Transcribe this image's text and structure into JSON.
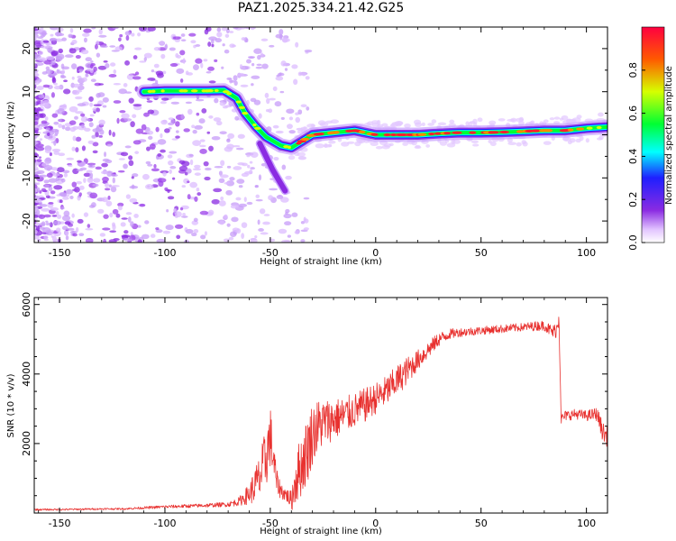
{
  "title": "PAZ1.2025.334.21.42.G25",
  "colors": {
    "snr_line": "#e8312f",
    "colorbar": [
      "#ffffff",
      "#e2c4ff",
      "#8a2be2",
      "#1f1fff",
      "#00ffff",
      "#00ff33",
      "#d6ff00",
      "#ff5a00",
      "#ff0040"
    ]
  },
  "chart_data": [
    {
      "type": "heatmap",
      "name": "spectrogram",
      "xlabel": "Height of straight line (km)",
      "ylabel": "Frequency (Hz)",
      "xlim": [
        -162,
        110
      ],
      "ylim": [
        -25,
        25
      ],
      "xticks": [
        -150,
        -100,
        -50,
        0,
        50,
        100
      ],
      "yticks": [
        -20,
        -10,
        0,
        10,
        20
      ],
      "colorbar": {
        "label": "Normalized spectral amplitude",
        "range": [
          0.0,
          1.0
        ],
        "ticks": [
          "0.0",
          "0.2",
          "0.4",
          "0.6",
          "0.8"
        ]
      },
      "ridge": [
        {
          "x": -110,
          "freq": 10.0
        },
        {
          "x": -100,
          "freq": 10.2
        },
        {
          "x": -90,
          "freq": 10.2
        },
        {
          "x": -80,
          "freq": 10.2
        },
        {
          "x": -72,
          "freq": 10.3
        },
        {
          "x": -66,
          "freq": 8.5
        },
        {
          "x": -62,
          "freq": 5.0
        },
        {
          "x": -57,
          "freq": 2.0
        },
        {
          "x": -52,
          "freq": -0.5
        },
        {
          "x": -45,
          "freq": -2.5
        },
        {
          "x": -40,
          "freq": -3.0
        },
        {
          "x": -35,
          "freq": -1.5
        },
        {
          "x": -30,
          "freq": 0.0
        },
        {
          "x": -20,
          "freq": 0.5
        },
        {
          "x": -10,
          "freq": 1.0
        },
        {
          "x": 0,
          "freq": 0.0
        },
        {
          "x": 10,
          "freq": 0.0
        },
        {
          "x": 20,
          "freq": 0.0
        },
        {
          "x": 30,
          "freq": 0.3
        },
        {
          "x": 40,
          "freq": 0.5
        },
        {
          "x": 50,
          "freq": 0.5
        },
        {
          "x": 60,
          "freq": 0.6
        },
        {
          "x": 70,
          "freq": 0.8
        },
        {
          "x": 80,
          "freq": 1.0
        },
        {
          "x": 90,
          "freq": 1.0
        },
        {
          "x": 100,
          "freq": 1.5
        },
        {
          "x": 110,
          "freq": 1.8
        }
      ],
      "branch": [
        {
          "x": -55,
          "freq": -2.0
        },
        {
          "x": -52,
          "freq": -5.0
        },
        {
          "x": -49,
          "freq": -8.0
        },
        {
          "x": -46,
          "freq": -10.5
        },
        {
          "x": -43,
          "freq": -13.0
        }
      ]
    },
    {
      "type": "line",
      "name": "snr",
      "xlabel": "Height of straight line (km)",
      "ylabel": "SNR (10 * v/v)",
      "xlim": [
        -162,
        110
      ],
      "ylim": [
        0,
        6200
      ],
      "xticks": [
        -150,
        -100,
        -50,
        0,
        50,
        100
      ],
      "yticks": [
        2000,
        4000,
        6000
      ],
      "series": [
        {
          "name": "SNR",
          "x": [
            -162,
            -150,
            -140,
            -130,
            -120,
            -110,
            -100,
            -90,
            -80,
            -70,
            -65,
            -60,
            -55,
            -52,
            -50,
            -47,
            -45,
            -42,
            -40,
            -38,
            -35,
            -32,
            -30,
            -27,
            -25,
            -20,
            -15,
            -10,
            -5,
            0,
            5,
            10,
            15,
            20,
            25,
            30,
            35,
            40,
            50,
            60,
            70,
            80,
            84,
            86,
            87,
            88,
            90,
            95,
            100,
            105,
            108,
            110
          ],
          "values": [
            100,
            100,
            110,
            120,
            120,
            150,
            180,
            200,
            220,
            250,
            330,
            550,
            1000,
            1600,
            2200,
            900,
            650,
            500,
            350,
            1000,
            1400,
            1900,
            2300,
            2500,
            2600,
            2700,
            2800,
            2950,
            3100,
            3300,
            3500,
            3800,
            4100,
            4400,
            4700,
            5000,
            5150,
            5200,
            5250,
            5300,
            5350,
            5400,
            5200,
            5300,
            5700,
            2700,
            2800,
            2850,
            2800,
            2850,
            2300,
            2200
          ],
          "noise": [
            25,
            25,
            25,
            25,
            25,
            35,
            45,
            50,
            55,
            70,
            120,
            300,
            700,
            900,
            900,
            350,
            250,
            200,
            300,
            800,
            900,
            1000,
            900,
            800,
            700,
            600,
            550,
            500,
            500,
            450,
            450,
            450,
            400,
            300,
            250,
            200,
            150,
            130,
            120,
            120,
            120,
            150,
            200,
            250,
            300,
            150,
            150,
            150,
            150,
            200,
            300,
            300
          ]
        }
      ]
    }
  ]
}
